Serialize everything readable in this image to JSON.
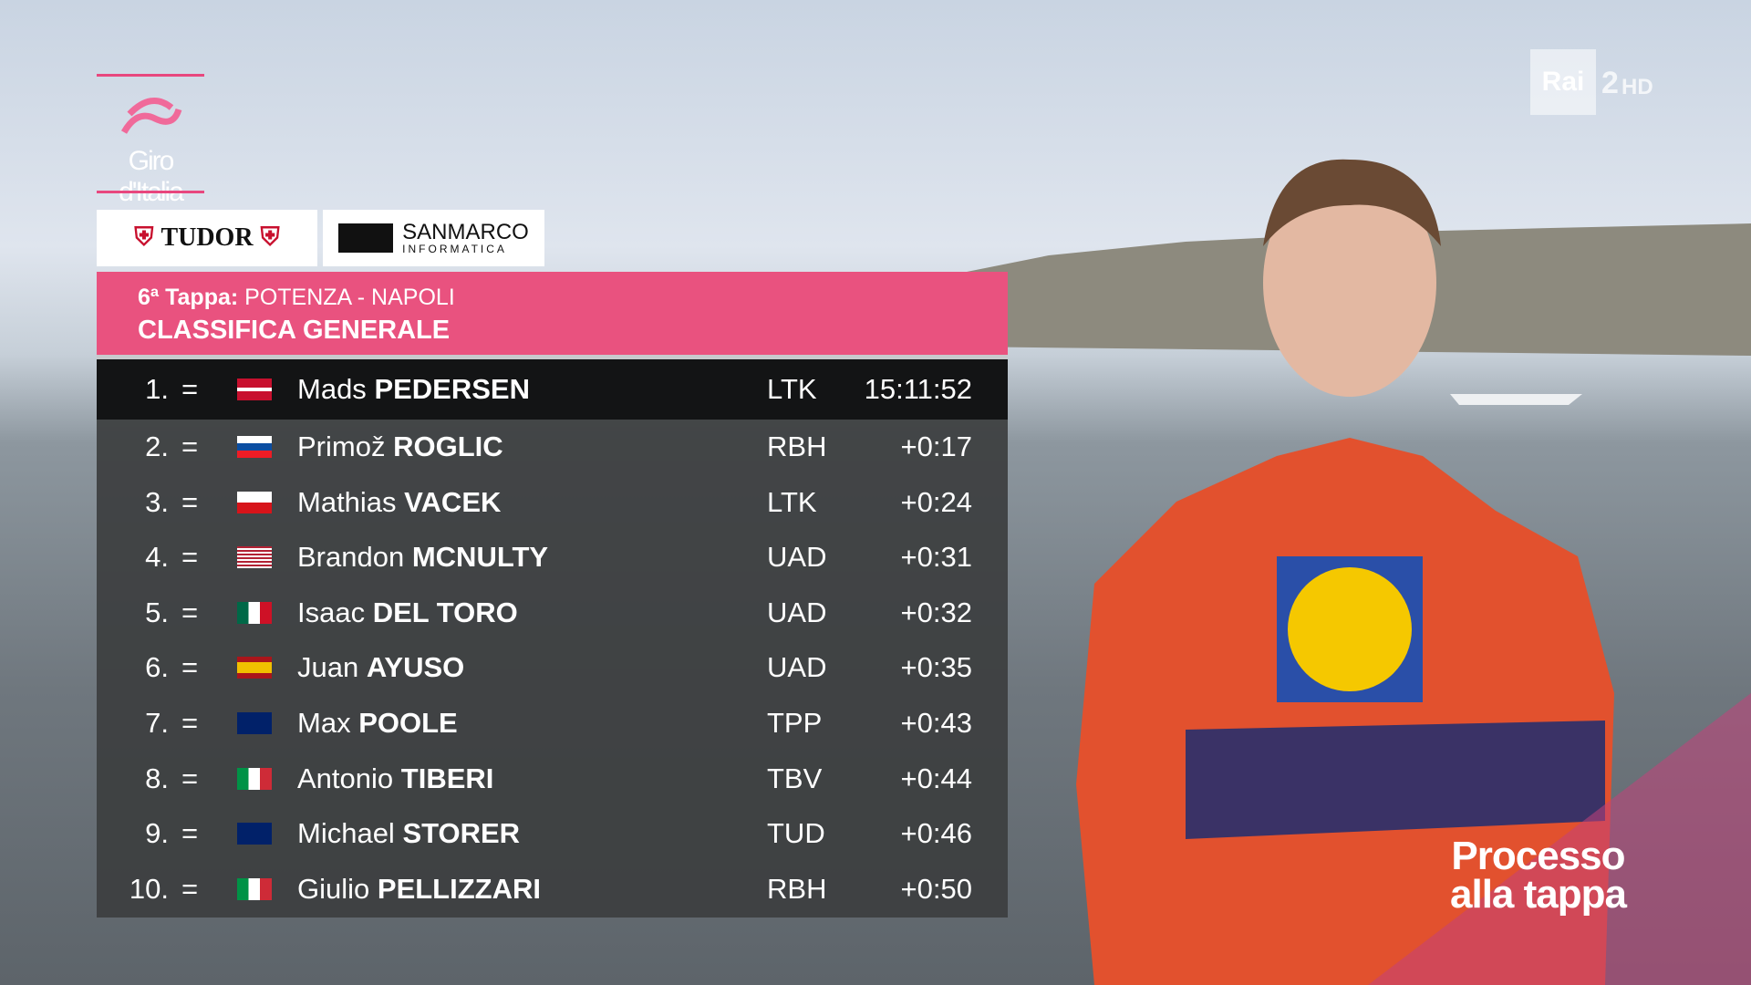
{
  "logo": {
    "text": "Giro d'Italia"
  },
  "sponsors": {
    "first": "TUDOR",
    "second": "SANMARCO",
    "second_sub": "INFORMATICA"
  },
  "broadcaster": {
    "name": "Rai",
    "channel": "2",
    "quality": "HD"
  },
  "header": {
    "stage": "6ª Tappa:",
    "route": "POTENZA - NAPOLI",
    "title": "CLASSIFICA GENERALE"
  },
  "standings": {
    "rows": [
      {
        "rank": "1.",
        "change": "=",
        "first_name": "Mads",
        "last_name": "PEDERSEN",
        "team": "LTK",
        "time": "15:11:52"
      },
      {
        "rank": "2.",
        "change": "=",
        "first_name": "Primož",
        "last_name": "ROGLIC",
        "team": "RBH",
        "time": "+0:17"
      },
      {
        "rank": "3.",
        "change": "=",
        "first_name": "Mathias",
        "last_name": "VACEK",
        "team": "LTK",
        "time": "+0:24"
      },
      {
        "rank": "4.",
        "change": "=",
        "first_name": "Brandon",
        "last_name": "MCNULTY",
        "team": "UAD",
        "time": "+0:31"
      },
      {
        "rank": "5.",
        "change": "=",
        "first_name": "Isaac",
        "last_name": "DEL TORO",
        "team": "UAD",
        "time": "+0:32"
      },
      {
        "rank": "6.",
        "change": "=",
        "first_name": "Juan",
        "last_name": "AYUSO",
        "team": "UAD",
        "time": "+0:35"
      },
      {
        "rank": "7.",
        "change": "=",
        "first_name": "Max",
        "last_name": "POOLE",
        "team": "TPP",
        "time": "+0:43"
      },
      {
        "rank": "8.",
        "change": "=",
        "first_name": "Antonio",
        "last_name": "TIBERI",
        "team": "TBV",
        "time": "+0:44"
      },
      {
        "rank": "9.",
        "change": "=",
        "first_name": "Michael",
        "last_name": "STORER",
        "team": "TUD",
        "time": "+0:46"
      },
      {
        "rank": "10.",
        "change": "=",
        "first_name": "Giulio",
        "last_name": "PELLIZZARI",
        "team": "RBH",
        "time": "+0:50"
      }
    ]
  },
  "show": {
    "line1": "Processo",
    "line2": "alla tappa"
  }
}
